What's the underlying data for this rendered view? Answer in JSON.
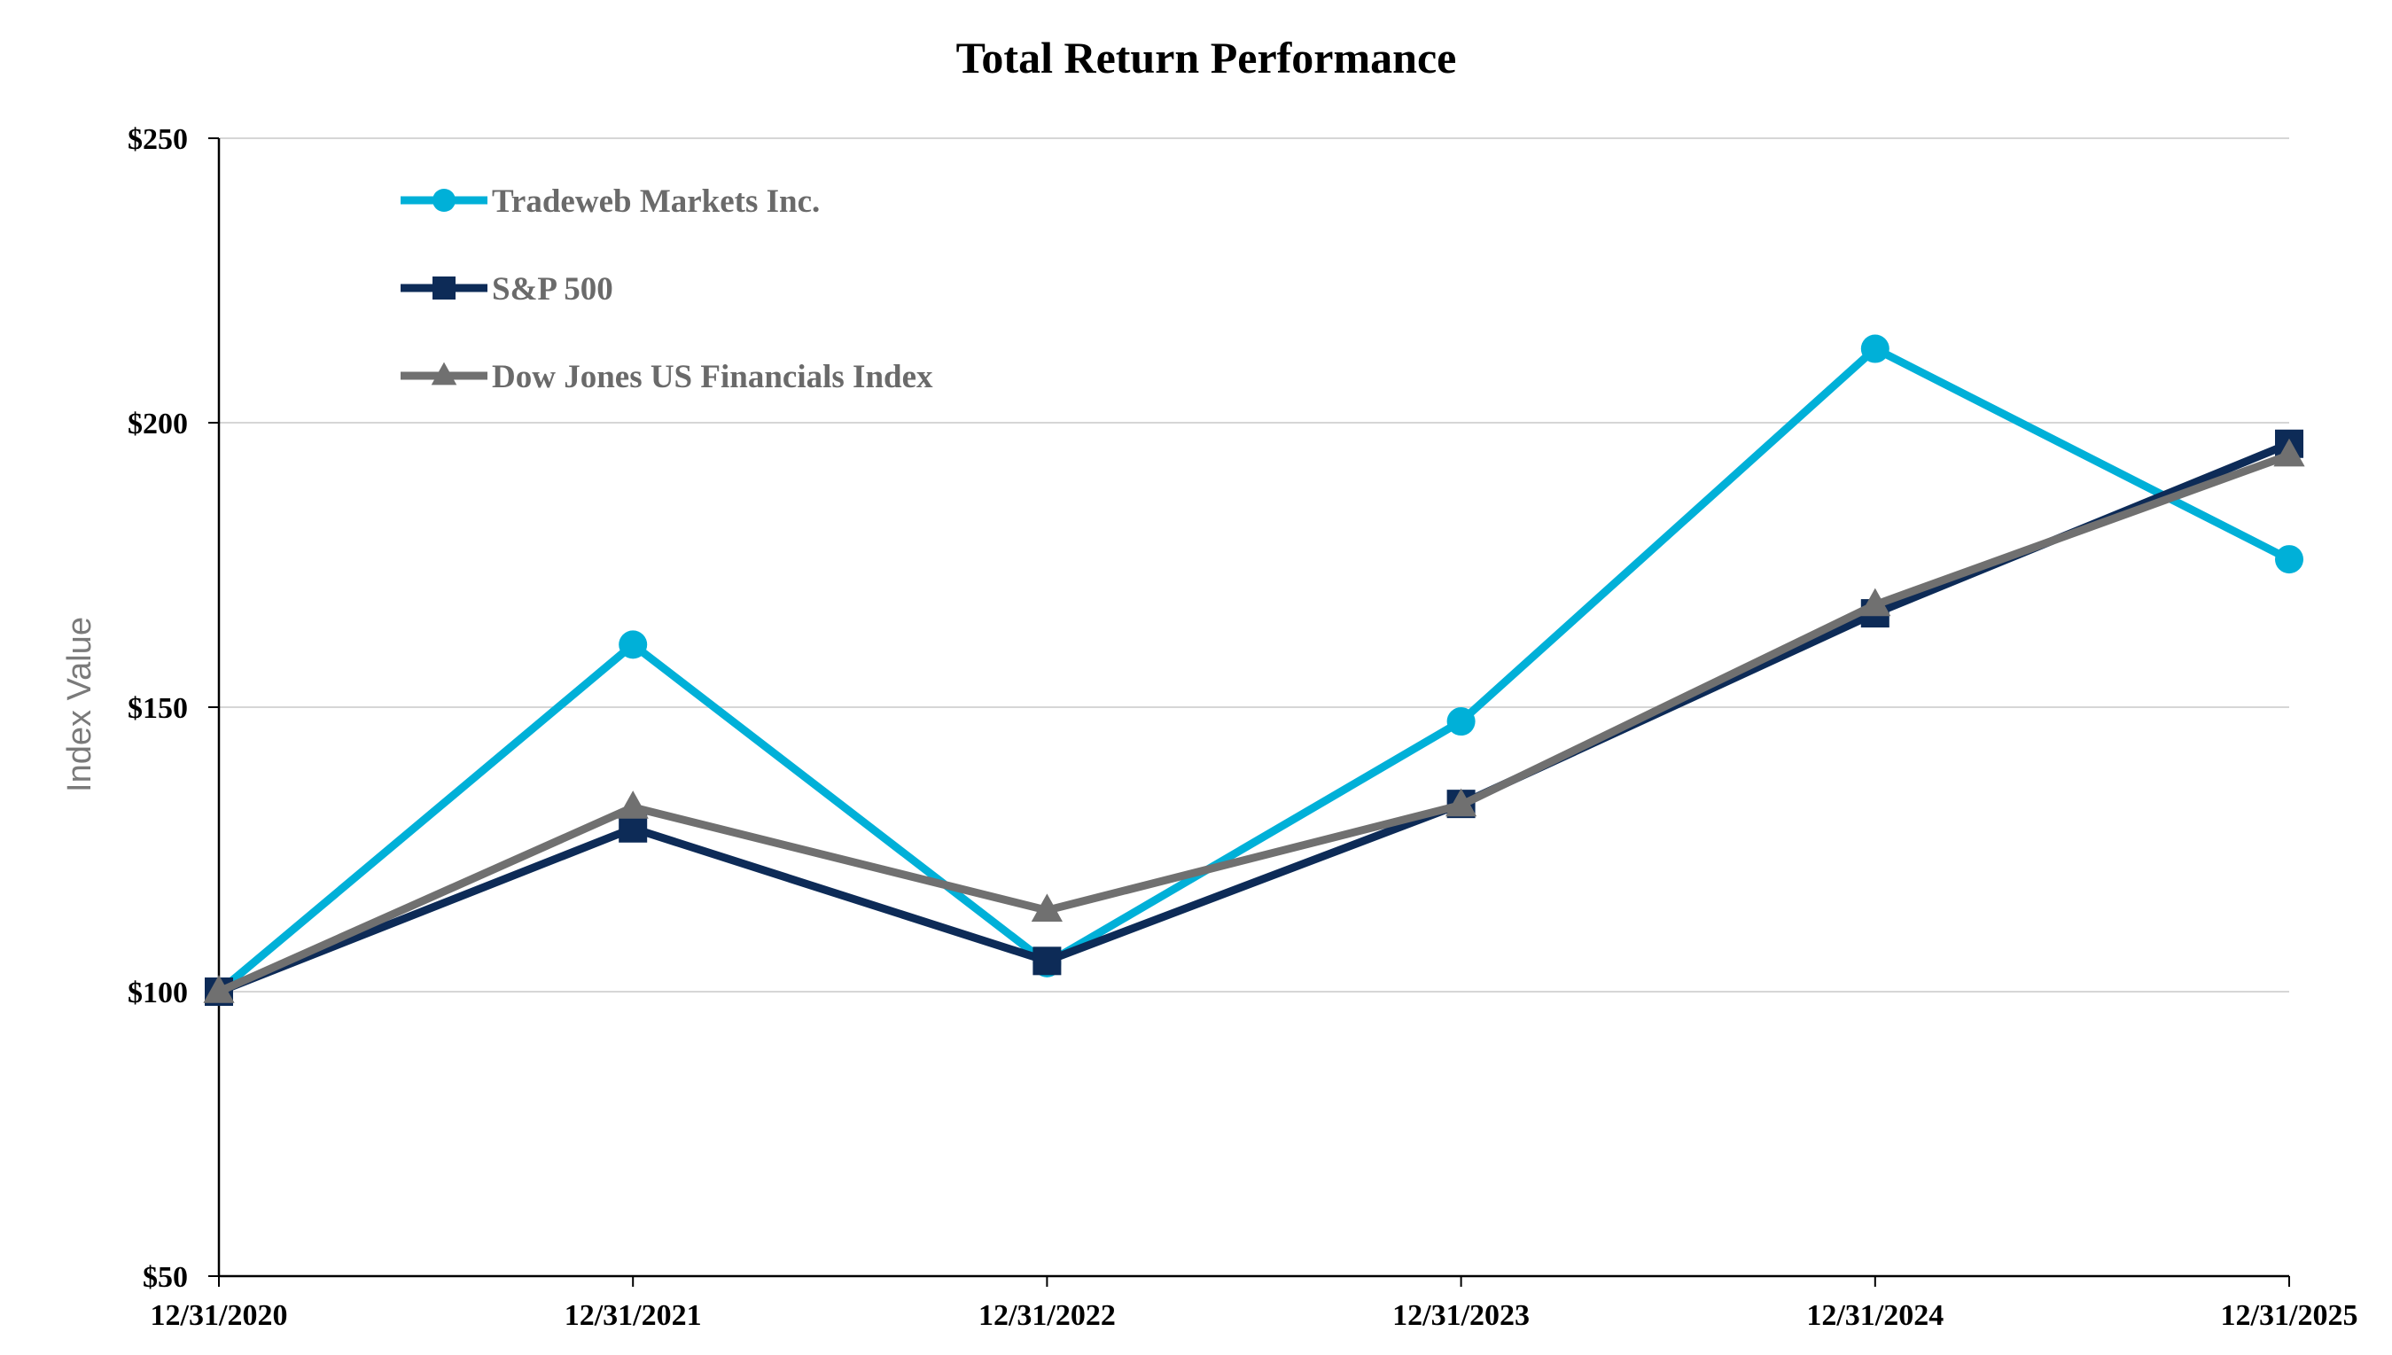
{
  "chart_data": {
    "type": "line",
    "title": "Total Return Performance",
    "xlabel": "",
    "ylabel": "Index Value",
    "categories": [
      "12/31/2020",
      "12/31/2021",
      "12/31/2022",
      "12/31/2023",
      "12/31/2024",
      "12/31/2025"
    ],
    "ylim": [
      50,
      250
    ],
    "yticks": [
      50,
      100,
      150,
      200,
      250
    ],
    "ytick_labels": [
      "$50",
      "$100",
      "$150",
      "$200",
      "$250"
    ],
    "grid": "horizontal",
    "legend_position": "top-left",
    "series": [
      {
        "name": "Tradeweb Markets Inc.",
        "values": [
          100,
          161,
          105,
          147.5,
          213,
          176
        ],
        "color": "#00b0d8",
        "marker": "circle"
      },
      {
        "name": "S&P 500",
        "values": [
          100,
          128.7,
          105.4,
          133,
          166.5,
          196.3
        ],
        "color": "#0d2b57",
        "marker": "square"
      },
      {
        "name": "Dow Jones US Financials Index",
        "values": [
          100,
          132.4,
          114.3,
          132.8,
          168,
          194.3
        ],
        "color": "#707070",
        "marker": "triangle"
      }
    ]
  }
}
